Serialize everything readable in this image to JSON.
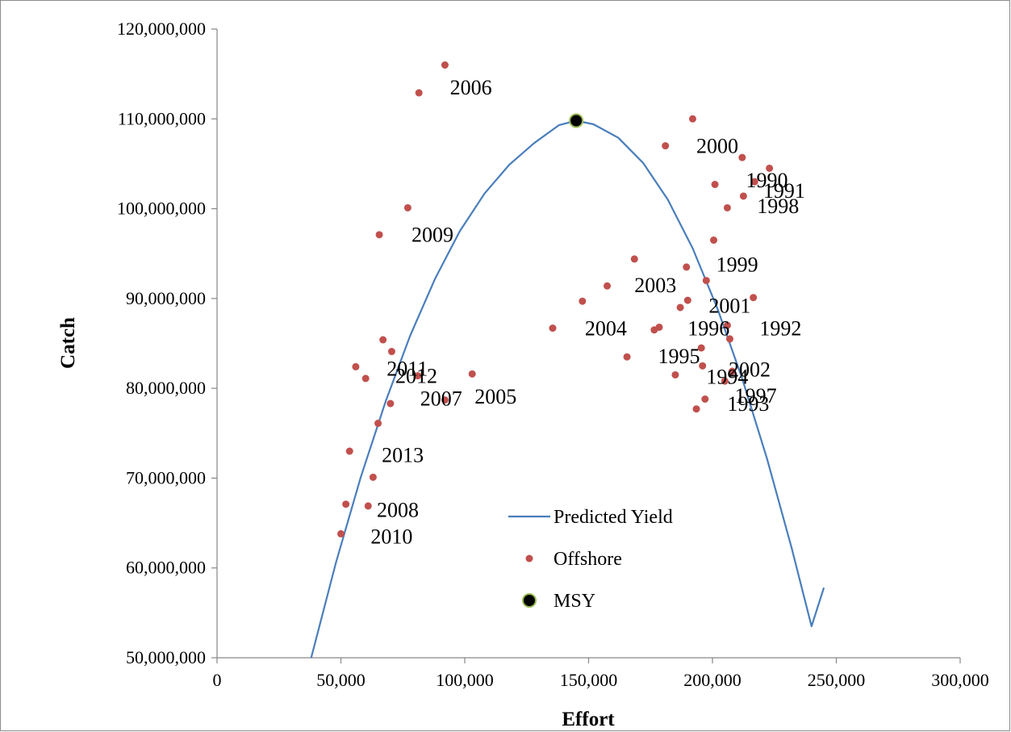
{
  "chart_data": {
    "type": "scatter",
    "title": "",
    "xlabel": "Effort",
    "ylabel": "Catch",
    "xlim": [
      0,
      300000
    ],
    "ylim": [
      50000000,
      120000000
    ],
    "x_ticks": [
      0,
      50000,
      100000,
      150000,
      200000,
      250000,
      300000
    ],
    "x_tick_labels": [
      "0",
      "50,000",
      "100,000",
      "150,000",
      "200,000",
      "250,000",
      "300,000"
    ],
    "y_ticks": [
      50000000,
      60000000,
      70000000,
      80000000,
      90000000,
      100000000,
      110000000,
      120000000
    ],
    "y_tick_labels": [
      "50,000,000",
      "60,000,000",
      "70,000,000",
      "80,000,000",
      "90,000,000",
      "100,000,000",
      "110,000,000",
      "120,000,000"
    ],
    "grid": false,
    "legend_position": "bottom-center",
    "series": [
      {
        "name": "Predicted Yield",
        "kind": "line",
        "color": "#4a7ebb",
        "x": [
          38000,
          48000,
          58000,
          68000,
          78000,
          88000,
          98000,
          108000,
          118000,
          128000,
          138000,
          145000,
          152000,
          162000,
          172000,
          182000,
          192000,
          202000,
          212000,
          222000,
          232000,
          240000,
          245000
        ],
        "y": [
          50000000,
          60600000,
          70100000,
          78500000,
          85900000,
          92200000,
          97500000,
          101700000,
          104900000,
          107300000,
          109300000,
          109800000,
          109400000,
          107900000,
          105100000,
          101000000,
          95600000,
          88900000,
          81100000,
          72200000,
          62200000,
          53500000,
          57800000
        ]
      },
      {
        "name": "Offshore",
        "kind": "scatter",
        "color": "#c0504d",
        "points": [
          {
            "x": 92000,
            "y": 116000000,
            "label": ""
          },
          {
            "x": 81500,
            "y": 112900000,
            "label": "2006"
          },
          {
            "x": 192000,
            "y": 110000000,
            "label": ""
          },
          {
            "x": 181000,
            "y": 107000000,
            "label": "2000"
          },
          {
            "x": 212000,
            "y": 105700000,
            "label": ""
          },
          {
            "x": 223000,
            "y": 104500000,
            "label": ""
          },
          {
            "x": 217000,
            "y": 103000000,
            "label": "1990"
          },
          {
            "x": 201000,
            "y": 102700000,
            "label": ""
          },
          {
            "x": 212500,
            "y": 101400000,
            "label": "1991"
          },
          {
            "x": 206000,
            "y": 100100000,
            "label": "1998"
          },
          {
            "x": 77000,
            "y": 100100000,
            "label": ""
          },
          {
            "x": 65500,
            "y": 97100000,
            "label": "2009"
          },
          {
            "x": 200500,
            "y": 96500000,
            "label": ""
          },
          {
            "x": 168500,
            "y": 94400000,
            "label": ""
          },
          {
            "x": 189500,
            "y": 93500000,
            "label": "1999"
          },
          {
            "x": 197500,
            "y": 92000000,
            "label": ""
          },
          {
            "x": 157500,
            "y": 91400000,
            "label": "2003"
          },
          {
            "x": 216500,
            "y": 90100000,
            "label": ""
          },
          {
            "x": 190000,
            "y": 89800000,
            "label": ""
          },
          {
            "x": 147500,
            "y": 89700000,
            "label": ""
          },
          {
            "x": 187000,
            "y": 89000000,
            "label": "2001"
          },
          {
            "x": 206000,
            "y": 87000000,
            "label": "1992"
          },
          {
            "x": 178500,
            "y": 86800000,
            "label": "1996"
          },
          {
            "x": 176500,
            "y": 86500000,
            "label": ""
          },
          {
            "x": 135500,
            "y": 86700000,
            "label": "2004"
          },
          {
            "x": 207000,
            "y": 85500000,
            "label": ""
          },
          {
            "x": 67000,
            "y": 85400000,
            "label": ""
          },
          {
            "x": 195500,
            "y": 84500000,
            "label": ""
          },
          {
            "x": 70500,
            "y": 84100000,
            "label": ""
          },
          {
            "x": 165500,
            "y": 83500000,
            "label": "1995"
          },
          {
            "x": 196000,
            "y": 82500000,
            "label": ""
          },
          {
            "x": 56000,
            "y": 82400000,
            "label": ""
          },
          {
            "x": 208000,
            "y": 81900000,
            "label": "2002"
          },
          {
            "x": 185000,
            "y": 81500000,
            "label": "1994"
          },
          {
            "x": 103000,
            "y": 81600000,
            "label": ""
          },
          {
            "x": 81000,
            "y": 81400000,
            "label": "2011"
          },
          {
            "x": 60000,
            "y": 81100000,
            "label": "2012"
          },
          {
            "x": 205000,
            "y": 80800000,
            "label": ""
          },
          {
            "x": 92000,
            "y": 78700000,
            "label": "2005"
          },
          {
            "x": 197000,
            "y": 78800000,
            "label": "1997"
          },
          {
            "x": 70000,
            "y": 78300000,
            "label": "2007"
          },
          {
            "x": 193500,
            "y": 77700000,
            "label": "1993"
          },
          {
            "x": 65000,
            "y": 76100000,
            "label": "2013"
          },
          {
            "x": 53500,
            "y": 73000000,
            "label": ""
          },
          {
            "x": 63000,
            "y": 70100000,
            "label": ""
          },
          {
            "x": 52000,
            "y": 67100000,
            "label": "2008"
          },
          {
            "x": 61000,
            "y": 66900000,
            "label": ""
          },
          {
            "x": 50000,
            "y": 63800000,
            "label": "2010"
          }
        ]
      },
      {
        "name": "MSY",
        "kind": "marker",
        "color": "#000000",
        "outline": "#9bbb59",
        "points": [
          {
            "x": 145000,
            "y": 109800000
          }
        ]
      }
    ],
    "point_labels": [
      {
        "text": "2006",
        "x": 94000,
        "y": 112700000
      },
      {
        "text": "2000",
        "x": 193500,
        "y": 106200000
      },
      {
        "text": "1990",
        "x": 213500,
        "y": 102400000
      },
      {
        "text": "1991",
        "x": 220500,
        "y": 101200000
      },
      {
        "text": "1998",
        "x": 218000,
        "y": 99500000
      },
      {
        "text": "2009",
        "x": 78500,
        "y": 96300000
      },
      {
        "text": "1999",
        "x": 201500,
        "y": 93000000
      },
      {
        "text": "2003",
        "x": 168500,
        "y": 90700000
      },
      {
        "text": "2001",
        "x": 198500,
        "y": 88400000
      },
      {
        "text": "1992",
        "x": 219000,
        "y": 85900000
      },
      {
        "text": "2004",
        "x": 148500,
        "y": 85900000
      },
      {
        "text": "1996",
        "x": 190000,
        "y": 85900000
      },
      {
        "text": "1995",
        "x": 178000,
        "y": 82800000
      },
      {
        "text": "2002",
        "x": 206500,
        "y": 81300000
      },
      {
        "text": "2011",
        "x": 68500,
        "y": 81400000
      },
      {
        "text": "1994",
        "x": 197500,
        "y": 80500000
      },
      {
        "text": "2012",
        "x": 72000,
        "y": 80600000
      },
      {
        "text": "1997",
        "x": 209000,
        "y": 78400000
      },
      {
        "text": "2007",
        "x": 82000,
        "y": 78100000
      },
      {
        "text": "2005",
        "x": 104000,
        "y": 78300000
      },
      {
        "text": "1993",
        "x": 206000,
        "y": 77500000
      },
      {
        "text": "2013",
        "x": 66500,
        "y": 71800000
      },
      {
        "text": "2008",
        "x": 64500,
        "y": 65700000
      },
      {
        "text": "2010",
        "x": 62000,
        "y": 62700000
      }
    ]
  }
}
